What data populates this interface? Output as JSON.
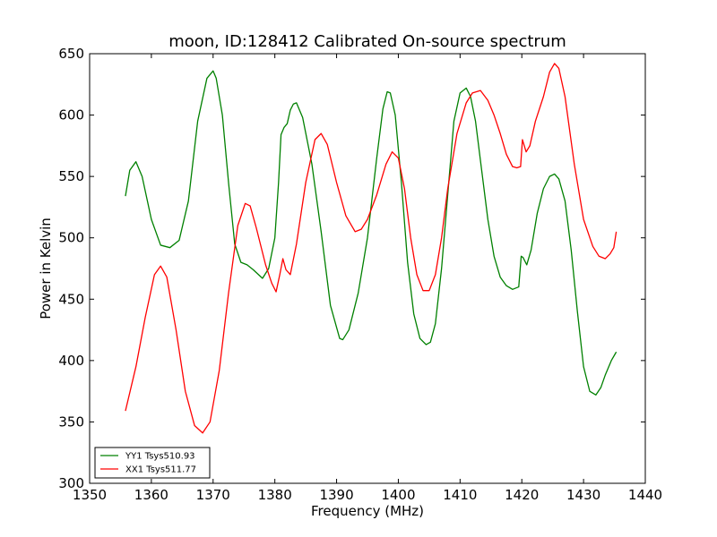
{
  "chart_data": {
    "type": "line",
    "title": "moon, ID:128412 Calibrated On-source spectrum",
    "xlabel": "Frequency (MHz)",
    "ylabel": "Power in Kelvin",
    "xlim": [
      1350,
      1440
    ],
    "ylim": [
      300,
      650
    ],
    "xticks": [
      1350,
      1360,
      1370,
      1380,
      1390,
      1400,
      1410,
      1420,
      1430,
      1440
    ],
    "yticks": [
      300,
      350,
      400,
      450,
      500,
      550,
      600,
      650
    ],
    "grid": false,
    "legend_position": "lower-left",
    "series": [
      {
        "name": "YY1 Tsys510.93",
        "color": "#008000",
        "x": [
          1355.8,
          1356.5,
          1357.5,
          1358.5,
          1360,
          1361.5,
          1363,
          1364.5,
          1366,
          1367.5,
          1369,
          1370,
          1370.5,
          1371.5,
          1372.5,
          1373.5,
          1374.5,
          1375.5,
          1376.5,
          1378,
          1379,
          1380,
          1380.6,
          1381,
          1381.5,
          1382,
          1382.5,
          1383,
          1383.5,
          1384.5,
          1386,
          1387.5,
          1389,
          1390.5,
          1391,
          1392,
          1393.5,
          1395,
          1396.5,
          1397.5,
          1398.2,
          1398.7,
          1399.5,
          1400.5,
          1401.5,
          1402.5,
          1403.5,
          1404.5,
          1405.2,
          1406,
          1407,
          1408,
          1409,
          1410,
          1411,
          1411.7,
          1412.5,
          1413.5,
          1414.5,
          1415.5,
          1416.5,
          1417.5,
          1418.5,
          1419.5,
          1419.9,
          1420.2,
          1420.8,
          1421.5,
          1422.5,
          1423.5,
          1424.5,
          1425.3,
          1426,
          1427,
          1428,
          1429,
          1430,
          1431,
          1432,
          1432.8,
          1433.5,
          1434.5,
          1435.3
        ],
        "y": [
          534,
          555,
          562,
          550,
          515,
          494,
          492,
          498,
          530,
          595,
          630,
          636,
          630,
          600,
          545,
          495,
          480,
          478,
          474,
          467,
          475,
          500,
          545,
          584,
          590,
          593,
          604,
          609,
          610,
          598,
          560,
          505,
          445,
          418,
          417,
          425,
          455,
          500,
          565,
          605,
          619,
          618,
          600,
          545,
          480,
          438,
          418,
          413,
          415,
          430,
          475,
          535,
          595,
          618,
          622,
          615,
          595,
          555,
          515,
          485,
          468,
          461,
          458,
          460,
          485,
          484,
          478,
          490,
          520,
          540,
          550,
          552,
          548,
          530,
          490,
          440,
          395,
          375,
          372,
          378,
          388,
          400,
          407
        ]
      },
      {
        "name": "XX1 Tsys511.77",
        "color": "#ff0000",
        "x": [
          1355.8,
          1357.5,
          1359,
          1360.5,
          1361.5,
          1362.5,
          1364,
          1365.5,
          1367,
          1368.3,
          1369.5,
          1371,
          1372.5,
          1374,
          1375.2,
          1376,
          1377,
          1378.5,
          1379.5,
          1380.2,
          1380.8,
          1381.3,
          1381.8,
          1382.5,
          1383.5,
          1385,
          1386.5,
          1387.5,
          1388.5,
          1390,
          1391.5,
          1393,
          1394,
          1395,
          1396.5,
          1398,
          1399,
          1400,
          1401,
          1402,
          1403,
          1404,
          1405,
          1406,
          1407,
          1408,
          1409.5,
          1411,
          1412,
          1413.3,
          1414.5,
          1415.5,
          1416.5,
          1417.5,
          1418.5,
          1419.2,
          1419.8,
          1420.1,
          1420.7,
          1421.3,
          1422.2,
          1423.5,
          1424.5,
          1425.3,
          1426,
          1427,
          1428.5,
          1430,
          1431.5,
          1432.5,
          1433.5,
          1434.3,
          1434.9,
          1435.3
        ],
        "y": [
          359,
          395,
          435,
          470,
          477,
          468,
          425,
          375,
          347,
          341,
          350,
          392,
          455,
          510,
          528,
          526,
          508,
          478,
          463,
          456,
          470,
          483,
          474,
          470,
          495,
          545,
          580,
          585,
          576,
          545,
          518,
          505,
          507,
          515,
          535,
          560,
          570,
          565,
          540,
          500,
          470,
          457,
          457,
          470,
          500,
          540,
          585,
          610,
          618,
          620,
          612,
          600,
          585,
          568,
          558,
          557,
          558,
          580,
          570,
          575,
          595,
          615,
          635,
          642,
          638,
          615,
          560,
          515,
          493,
          485,
          483,
          487,
          492,
          505
        ]
      }
    ]
  }
}
